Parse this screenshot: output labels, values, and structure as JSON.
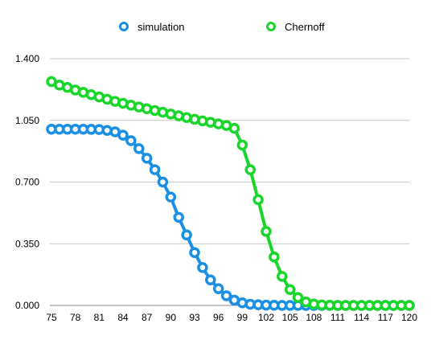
{
  "chart_data": {
    "type": "line",
    "legend_position": "top",
    "grid": true,
    "x": [
      75,
      76,
      77,
      78,
      79,
      80,
      81,
      82,
      83,
      84,
      85,
      86,
      87,
      88,
      89,
      90,
      91,
      92,
      93,
      94,
      95,
      96,
      97,
      98,
      99,
      100,
      101,
      102,
      103,
      104,
      105,
      106,
      107,
      108,
      109,
      110,
      111,
      112,
      113,
      114,
      115,
      116,
      117,
      118,
      119,
      120
    ],
    "x_ticks": [
      75,
      78,
      81,
      84,
      87,
      90,
      93,
      96,
      99,
      102,
      105,
      108,
      111,
      114,
      117,
      120
    ],
    "xlim": [
      75,
      120
    ],
    "ylim": [
      0,
      1.4
    ],
    "y_ticks": [
      "0.000",
      "0.350",
      "0.700",
      "1.050",
      "1.400"
    ],
    "series": [
      {
        "name": "simulation",
        "color": "#1a8fe3",
        "values": [
          1.0,
          1.0,
          1.0,
          1.0,
          1.0,
          0.999,
          0.998,
          0.993,
          0.985,
          0.966,
          0.935,
          0.89,
          0.835,
          0.77,
          0.7,
          0.615,
          0.5,
          0.4,
          0.3,
          0.215,
          0.145,
          0.095,
          0.055,
          0.03,
          0.015,
          0.007,
          0.004,
          0.002,
          0.001,
          0.0,
          0.0,
          0.0,
          0.0,
          0.0,
          0.0,
          0.0,
          0.0,
          0.0,
          0.0,
          0.0,
          0.0,
          0.0,
          0.0,
          0.0,
          0.0,
          0.0
        ]
      },
      {
        "name": "Chernoff",
        "color": "#19d62a",
        "values": [
          1.27,
          1.25,
          1.237,
          1.222,
          1.209,
          1.196,
          1.183,
          1.17,
          1.158,
          1.147,
          1.136,
          1.126,
          1.116,
          1.106,
          1.096,
          1.086,
          1.076,
          1.066,
          1.056,
          1.047,
          1.039,
          1.03,
          1.021,
          1.005,
          0.91,
          0.77,
          0.6,
          0.42,
          0.275,
          0.165,
          0.09,
          0.045,
          0.02,
          0.008,
          0.003,
          0.001,
          0.0,
          0.0,
          0.0,
          0.0,
          0.0,
          0.0,
          0.0,
          0.0,
          0.0,
          0.0
        ]
      }
    ]
  }
}
